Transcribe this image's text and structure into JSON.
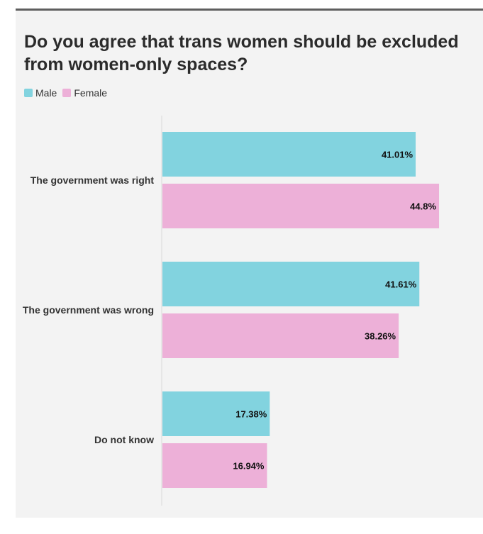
{
  "chart_data": {
    "type": "bar",
    "orientation": "horizontal",
    "title": "Do you agree that trans women should be excluded from women-only spaces?",
    "categories": [
      "The government was right",
      "The government was wrong",
      "Do not know"
    ],
    "series": [
      {
        "name": "Male",
        "values": [
          41.01,
          41.61,
          17.38
        ],
        "labels": [
          "41.01%",
          "41.61%",
          "17.38%"
        ],
        "color": "#82d3df"
      },
      {
        "name": "Female",
        "values": [
          44.8,
          38.26,
          16.94
        ],
        "labels": [
          "44.8%",
          "38.26%",
          "16.94%"
        ],
        "color": "#edb0d8"
      }
    ],
    "xlim": [
      0,
      45.6
    ],
    "grid": false,
    "legend_position": "top-left"
  }
}
